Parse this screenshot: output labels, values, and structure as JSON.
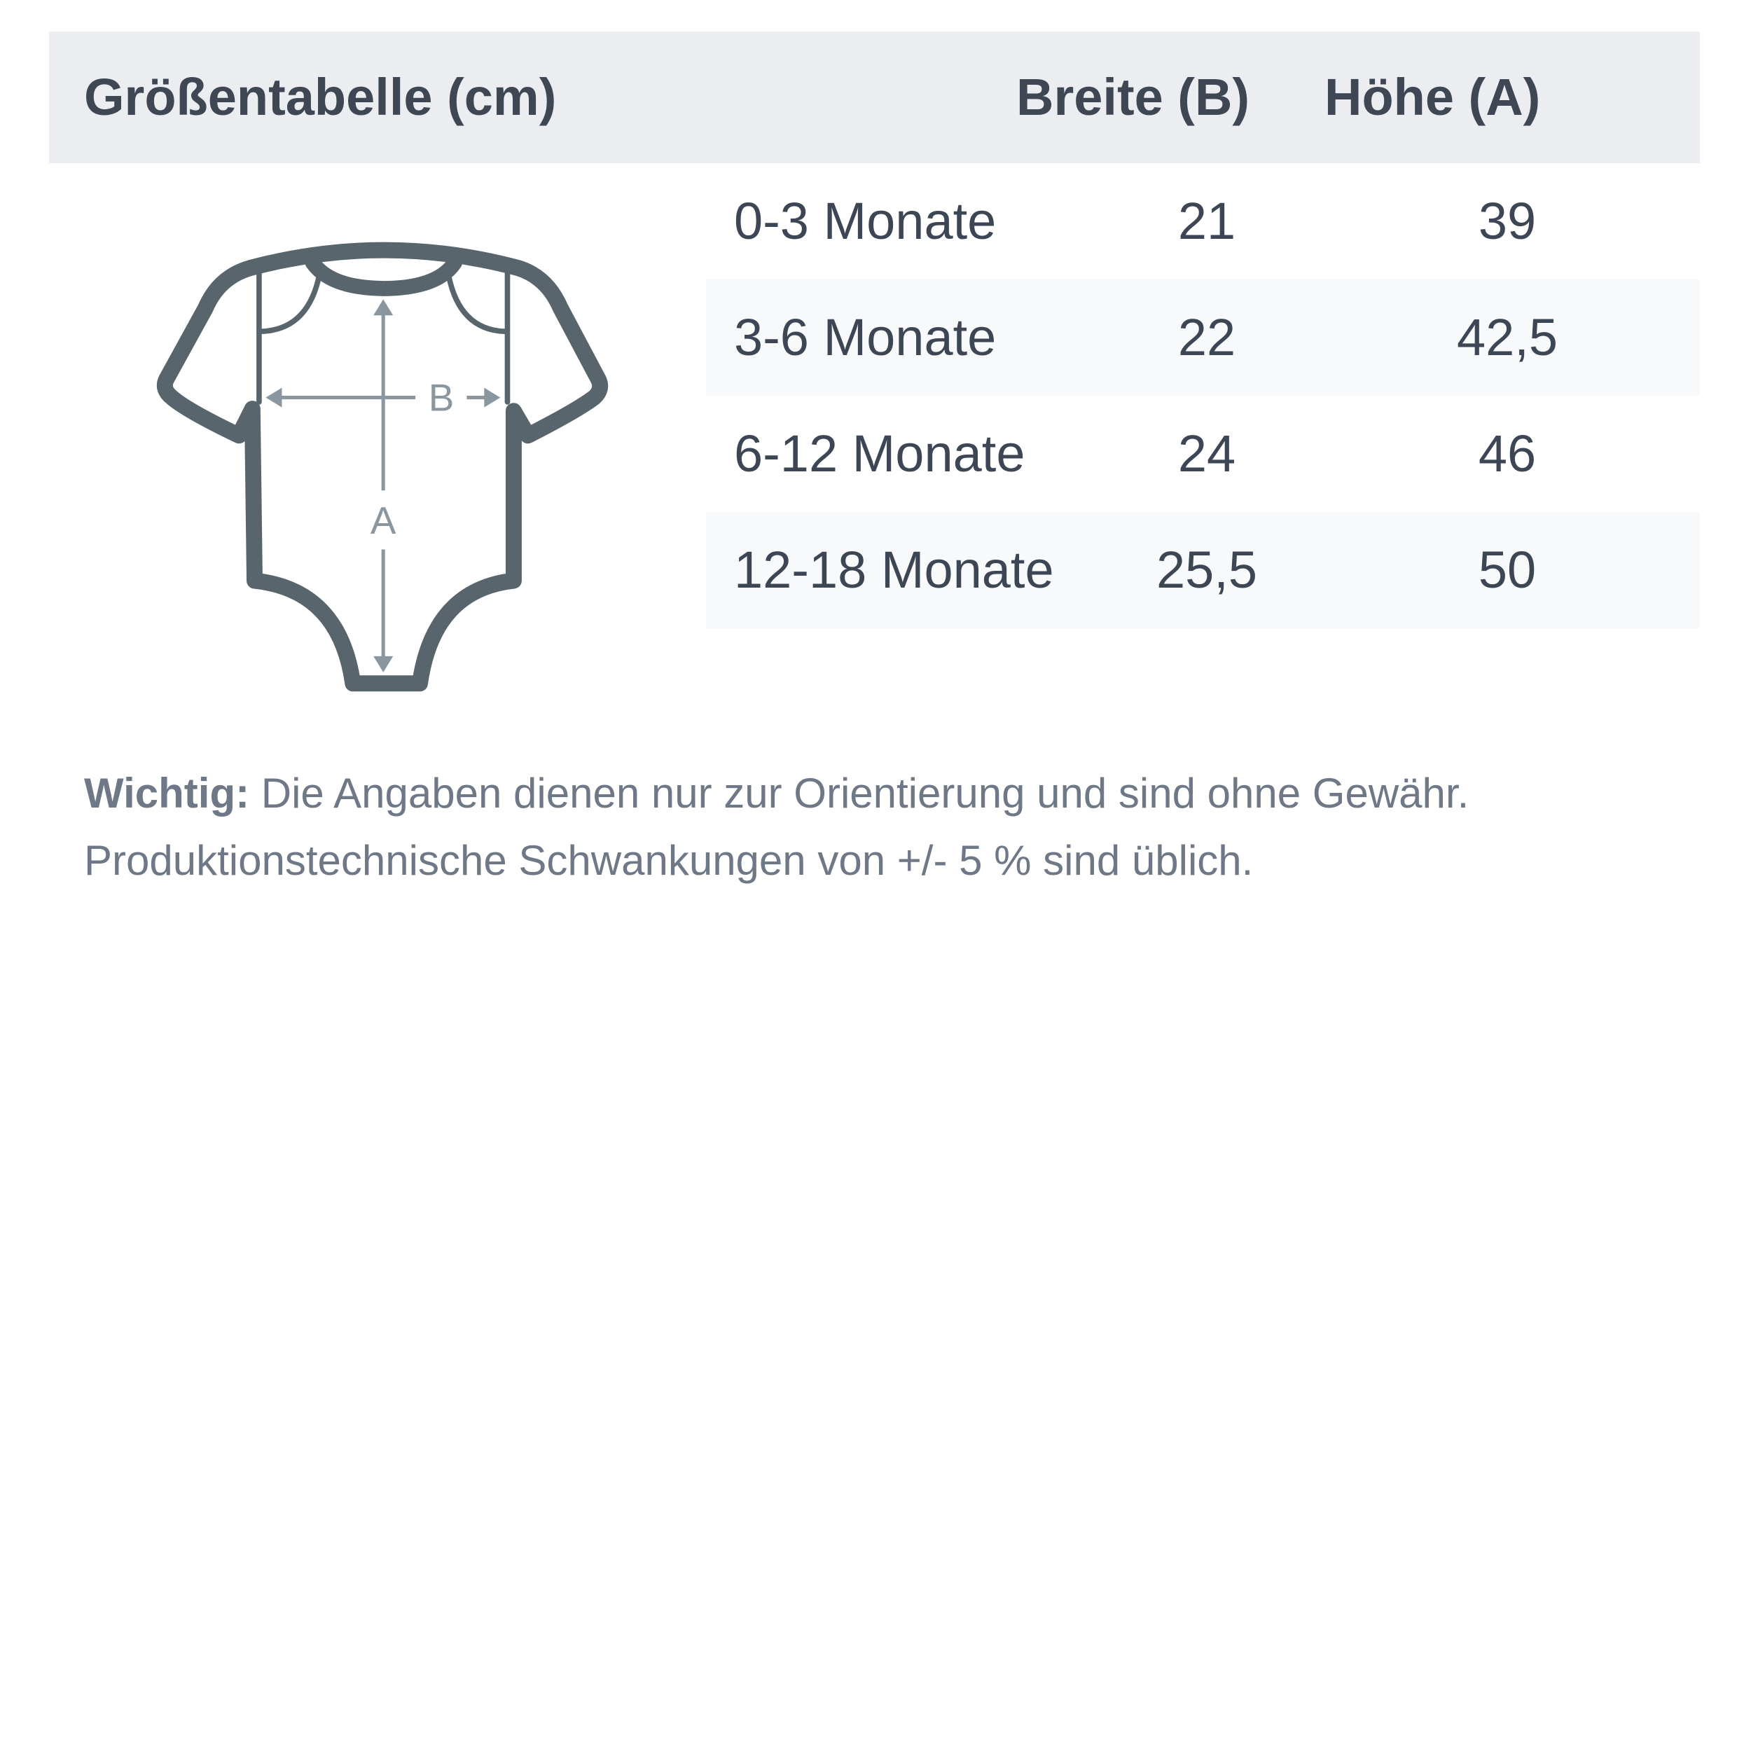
{
  "header": {
    "title": "Größentabelle (cm)",
    "col_width": "Breite (B)",
    "col_height": "Höhe (A)"
  },
  "figure": {
    "label_b": "B",
    "label_a": "A",
    "outline_color": "#58656d",
    "arrow_color": "#8a96a0"
  },
  "rows": [
    {
      "size": "0-3 Monate",
      "width": "21",
      "height": "39"
    },
    {
      "size": "3-6 Monate",
      "width": "22",
      "height": "42,5"
    },
    {
      "size": "6-12 Monate",
      "width": "24",
      "height": "46"
    },
    {
      "size": "12-18 Monate",
      "width": "25,5",
      "height": "50"
    }
  ],
  "note": {
    "bold": "Wichtig:",
    "line1": " Die Angaben dienen nur zur Orientierung und sind ohne Gewähr.",
    "line2": "Produktionstechnische Schwankungen von +/- 5 % sind üblich."
  }
}
